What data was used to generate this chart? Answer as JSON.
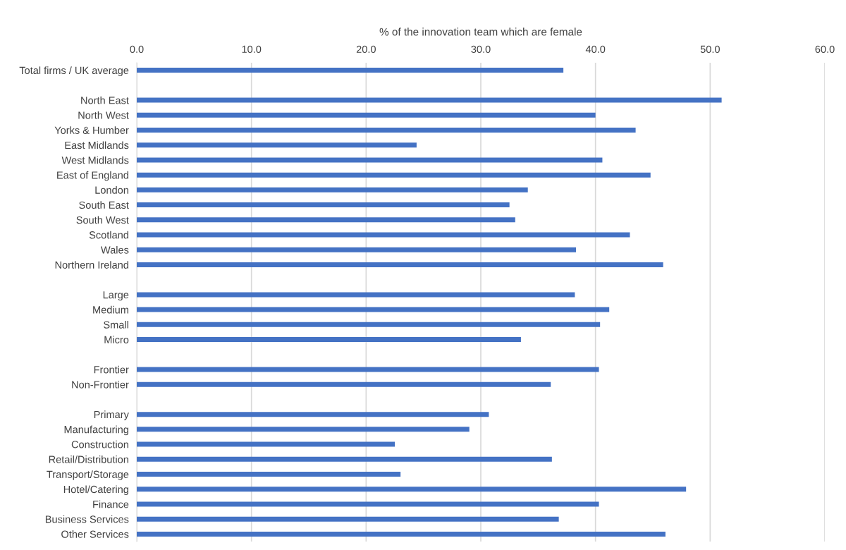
{
  "chart_data": {
    "type": "bar",
    "orientation": "horizontal",
    "xlabel": "% of the innovation team which are female",
    "categories": [
      "Total firms / UK average",
      null,
      "North East",
      "North West",
      "Yorks & Humber",
      "East Midlands",
      "West Midlands",
      "East of England",
      "London",
      "South East",
      "South West",
      "Scotland",
      "Wales",
      "Northern Ireland",
      null,
      "Large",
      "Medium",
      "Small",
      "Micro",
      null,
      "Frontier",
      "Non-Frontier",
      null,
      "Primary",
      "Manufacturing",
      "Construction",
      "Retail/Distribution",
      "Transport/Storage",
      "Hotel/Catering",
      "Finance",
      "Business Services",
      "Other Services"
    ],
    "values": [
      37.2,
      null,
      51.0,
      40.0,
      43.5,
      24.4,
      40.6,
      44.8,
      34.1,
      32.5,
      33.0,
      43.0,
      38.3,
      45.9,
      null,
      38.2,
      41.2,
      40.4,
      33.5,
      null,
      40.3,
      36.1,
      null,
      30.7,
      29.0,
      22.5,
      36.2,
      23.0,
      47.9,
      40.3,
      36.8,
      46.1
    ],
    "color": "#4472c4",
    "xlim": [
      0,
      60
    ],
    "xticks": [
      {
        "value": 0,
        "label": "0.0"
      },
      {
        "value": 10,
        "label": "10.0"
      },
      {
        "value": 20,
        "label": "20.0"
      },
      {
        "value": 30,
        "label": "30.0"
      },
      {
        "value": 40,
        "label": "40.0"
      },
      {
        "value": 50,
        "label": "50.0"
      },
      {
        "value": 60,
        "label": "60.0"
      }
    ],
    "grid": "x",
    "legend": false
  }
}
